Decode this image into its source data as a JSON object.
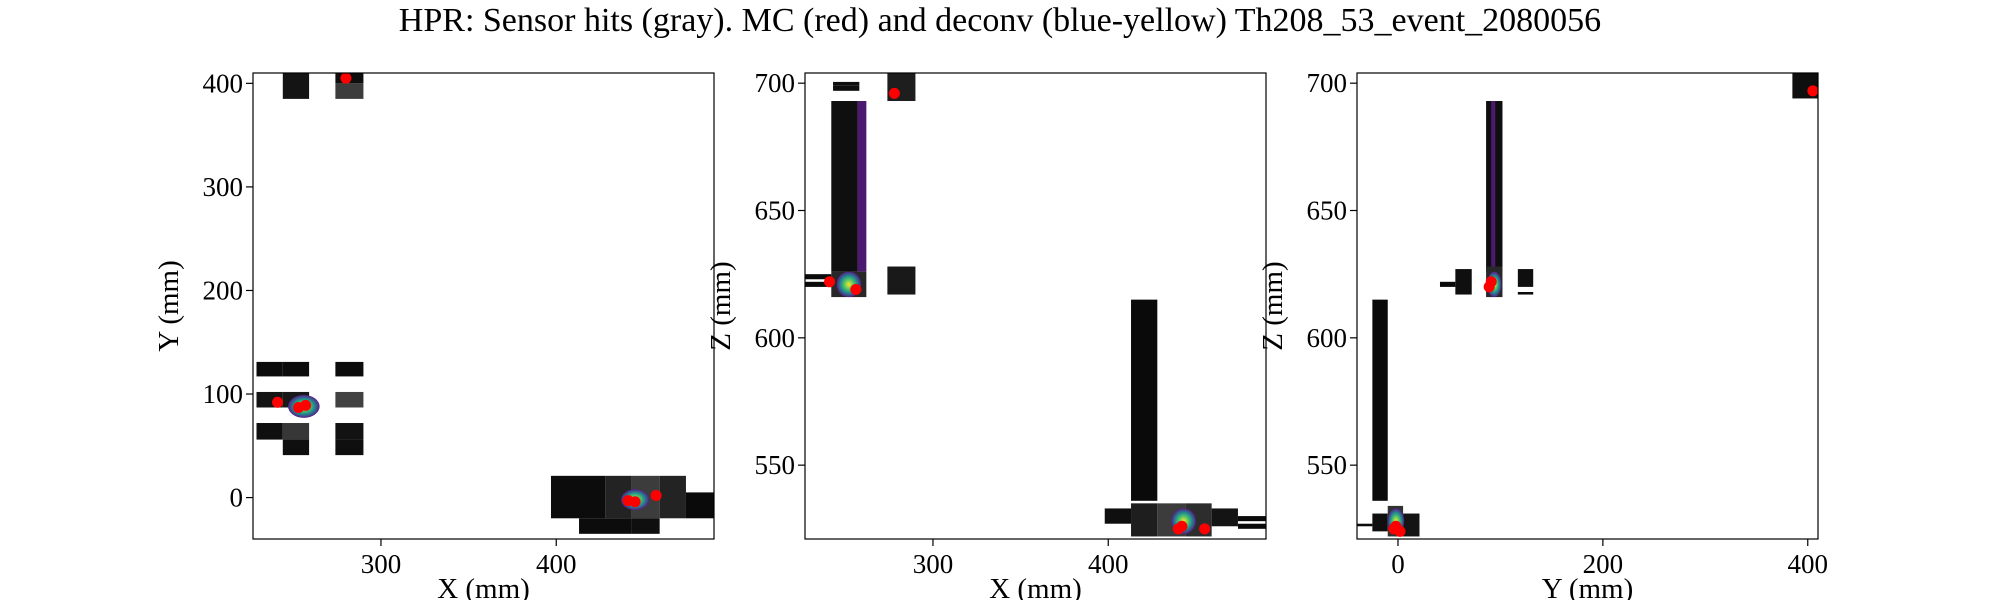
{
  "figure_title": "HPR: Sensor hits (gray). MC (red) and deconv (blue-yellow) Th208_53_event_2080056",
  "colors": {
    "mc_hits": "#ff0000",
    "deconv_low": "#3b0f70",
    "deconv_mid": "#21918c",
    "deconv_high": "#fde725",
    "sensor_dark": "#0a0a0a",
    "sensor_light": "#8a8a8a"
  },
  "chart_data": [
    {
      "type": "heatmap",
      "panel": "xy",
      "xlabel": "X (mm)",
      "ylabel": "Y (mm)",
      "xlim": [
        227,
        490
      ],
      "ylim": [
        -40,
        410
      ],
      "xticks": [
        300,
        400
      ],
      "yticks": [
        0,
        100,
        200,
        300,
        400
      ],
      "sensor_hits": [
        {
          "x": [
            244,
            259
          ],
          "y": [
            385,
            410
          ],
          "g": 20
        },
        {
          "x": [
            274,
            290
          ],
          "y": [
            400,
            410
          ],
          "g": 15
        },
        {
          "x": [
            274,
            290
          ],
          "y": [
            385,
            400
          ],
          "g": 60
        },
        {
          "x": [
            229,
            244
          ],
          "y": [
            117,
            131
          ],
          "g": 12
        },
        {
          "x": [
            244,
            259
          ],
          "y": [
            117,
            131
          ],
          "g": 12
        },
        {
          "x": [
            274,
            290
          ],
          "y": [
            117,
            131
          ],
          "g": 12
        },
        {
          "x": [
            229,
            244
          ],
          "y": [
            87,
            102
          ],
          "g": 20
        },
        {
          "x": [
            244,
            259
          ],
          "y": [
            87,
            102
          ],
          "g": 25
        },
        {
          "x": [
            274,
            290
          ],
          "y": [
            87,
            102
          ],
          "g": 65
        },
        {
          "x": [
            229,
            244
          ],
          "y": [
            56,
            72
          ],
          "g": 15
        },
        {
          "x": [
            244,
            259
          ],
          "y": [
            56,
            72
          ],
          "g": 55
        },
        {
          "x": [
            274,
            290
          ],
          "y": [
            56,
            72
          ],
          "g": 18
        },
        {
          "x": [
            244,
            259
          ],
          "y": [
            41,
            56
          ],
          "g": 15
        },
        {
          "x": [
            274,
            290
          ],
          "y": [
            41,
            56
          ],
          "g": 15
        },
        {
          "x": [
            397,
            428
          ],
          "y": [
            -20,
            21
          ],
          "g": 12
        },
        {
          "x": [
            428,
            443
          ],
          "y": [
            -20,
            21
          ],
          "g": 35
        },
        {
          "x": [
            443,
            459
          ],
          "y": [
            -20,
            21
          ],
          "g": 60
        },
        {
          "x": [
            459,
            474
          ],
          "y": [
            -20,
            21
          ],
          "g": 35
        },
        {
          "x": [
            474,
            490
          ],
          "y": [
            -20,
            5
          ],
          "g": 10
        },
        {
          "x": [
            413,
            443
          ],
          "y": [
            -35,
            -20
          ],
          "g": 12
        },
        {
          "x": [
            443,
            459
          ],
          "y": [
            -35,
            -20
          ],
          "g": 15
        }
      ],
      "deconv_blobs": [
        {
          "x": 256,
          "y": 88,
          "rx": 9,
          "ry": 11
        },
        {
          "x": 445,
          "y": -2,
          "rx": 8,
          "ry": 10
        }
      ],
      "mc_points": [
        {
          "x": 280,
          "y": 405
        },
        {
          "x": 241,
          "y": 92
        },
        {
          "x": 257,
          "y": 89
        },
        {
          "x": 253,
          "y": 87
        },
        {
          "x": 457,
          "y": 2
        },
        {
          "x": 441,
          "y": -3
        },
        {
          "x": 445,
          "y": -4
        }
      ]
    },
    {
      "type": "heatmap",
      "panel": "xz",
      "xlabel": "X (mm)",
      "ylabel": "Z (mm)",
      "xlim": [
        227,
        490
      ],
      "ylim": [
        521,
        704
      ],
      "xticks": [
        300,
        400
      ],
      "yticks": [
        550,
        600,
        650,
        700
      ],
      "sensor_hits": [
        {
          "x": [
            243,
            258
          ],
          "y": [
            697,
            699
          ],
          "g": 15
        },
        {
          "x": [
            243,
            258
          ],
          "y": [
            699,
            700.5
          ],
          "g": 15
        },
        {
          "x": [
            274,
            290
          ],
          "y": [
            693,
            704
          ],
          "g": 30
        },
        {
          "x": [
            242,
            257
          ],
          "y": [
            626,
            693
          ],
          "g": 15
        },
        {
          "x": [
            257,
            262
          ],
          "y": [
            626,
            693
          ],
          "g": 80,
          "purple": true
        },
        {
          "x": [
            227,
            242
          ],
          "y": [
            623,
            625
          ],
          "g": 10
        },
        {
          "x": [
            227,
            242
          ],
          "y": [
            620,
            622
          ],
          "g": 10
        },
        {
          "x": [
            242,
            262
          ],
          "y": [
            616,
            626
          ],
          "g": 40
        },
        {
          "x": [
            274,
            290
          ],
          "y": [
            617,
            628
          ],
          "g": 25
        },
        {
          "x": [
            413,
            428
          ],
          "y": [
            536,
            615
          ],
          "g": 10
        },
        {
          "x": [
            398,
            413
          ],
          "y": [
            527,
            533
          ],
          "g": 15
        },
        {
          "x": [
            413,
            428
          ],
          "y": [
            522,
            535
          ],
          "g": 30
        },
        {
          "x": [
            428,
            444
          ],
          "y": [
            522,
            535
          ],
          "g": 60
        },
        {
          "x": [
            444,
            459
          ],
          "y": [
            522,
            535
          ],
          "g": 45
        },
        {
          "x": [
            459,
            474
          ],
          "y": [
            526,
            533
          ],
          "g": 20
        },
        {
          "x": [
            474,
            490
          ],
          "y": [
            528,
            530
          ],
          "g": 10
        },
        {
          "x": [
            474,
            490
          ],
          "y": [
            525,
            527
          ],
          "g": 10
        }
      ],
      "deconv_blobs": [
        {
          "x": 252,
          "y": 621,
          "rx": 7,
          "ry": 5
        },
        {
          "x": 443,
          "y": 528,
          "rx": 7,
          "ry": 5
        }
      ],
      "mc_points": [
        {
          "x": 278,
          "y": 696
        },
        {
          "x": 241,
          "y": 622
        },
        {
          "x": 256,
          "y": 619
        },
        {
          "x": 442,
          "y": 526
        },
        {
          "x": 440,
          "y": 525
        },
        {
          "x": 455,
          "y": 525
        }
      ]
    },
    {
      "type": "heatmap",
      "panel": "yz",
      "xlabel": "Y (mm)",
      "ylabel": "Z (mm)",
      "xlim": [
        -40,
        410
      ],
      "ylim": [
        521,
        704
      ],
      "xticks": [
        0,
        200,
        400
      ],
      "yticks": [
        550,
        600,
        650,
        700
      ],
      "sensor_hits": [
        {
          "x": [
            385,
            410
          ],
          "y": [
            694,
            704
          ],
          "g": 15
        },
        {
          "x": [
            86,
            102
          ],
          "y": [
            626,
            693
          ],
          "g": 15
        },
        {
          "x": [
            91,
            95
          ],
          "y": [
            626,
            693
          ],
          "g": 80,
          "purple": true
        },
        {
          "x": [
            41,
            56
          ],
          "y": [
            620,
            622
          ],
          "g": 10
        },
        {
          "x": [
            56,
            72
          ],
          "y": [
            617,
            627
          ],
          "g": 15
        },
        {
          "x": [
            86,
            102
          ],
          "y": [
            616,
            628
          ],
          "g": 40
        },
        {
          "x": [
            117,
            132
          ],
          "y": [
            620,
            627
          ],
          "g": 15
        },
        {
          "x": [
            117,
            132
          ],
          "y": [
            617,
            618
          ],
          "g": 10
        },
        {
          "x": [
            -25,
            -10
          ],
          "y": [
            536,
            615
          ],
          "g": 10
        },
        {
          "x": [
            -40,
            -25
          ],
          "y": [
            526,
            527
          ],
          "g": 10
        },
        {
          "x": [
            -25,
            -10
          ],
          "y": [
            524,
            531
          ],
          "g": 15
        },
        {
          "x": [
            -10,
            5
          ],
          "y": [
            522,
            534
          ],
          "g": 50
        },
        {
          "x": [
            5,
            21
          ],
          "y": [
            522,
            531
          ],
          "g": 20
        }
      ],
      "deconv_blobs": [
        {
          "x": 94,
          "y": 621,
          "rx": 7,
          "ry": 5
        },
        {
          "x": -2,
          "y": 528,
          "rx": 8,
          "ry": 5
        }
      ],
      "mc_points": [
        {
          "x": 405,
          "y": 697
        },
        {
          "x": 91,
          "y": 622
        },
        {
          "x": 89,
          "y": 620
        },
        {
          "x": -4,
          "y": 525
        },
        {
          "x": 2,
          "y": 524
        },
        {
          "x": -2,
          "y": 526
        }
      ]
    }
  ]
}
